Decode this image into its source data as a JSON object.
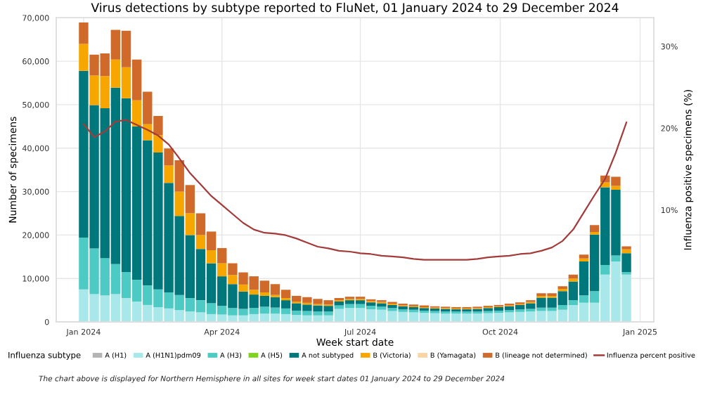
{
  "chart_data": {
    "type": "bar",
    "stacked": true,
    "title": "Virus detections by subtype reported to FluNet, 01 January 2024 to 29 December 2024",
    "xlabel": "Week start date",
    "ylabel": "Number of specimens",
    "y2label": "Influenza positive specimens (%)",
    "legend_title": "Influenza subtype",
    "legend": "bottom",
    "grid": true,
    "annotations": [
      "The chart above is displayed for Northern Hemisphere in all sites for week start dates 01 January 2024 to 29 December 2024"
    ],
    "x": [
      "2024-01-01",
      "2024-01-08",
      "2024-01-15",
      "2024-01-22",
      "2024-01-29",
      "2024-02-05",
      "2024-02-12",
      "2024-02-19",
      "2024-02-26",
      "2024-03-04",
      "2024-03-11",
      "2024-03-18",
      "2024-03-25",
      "2024-04-01",
      "2024-04-08",
      "2024-04-15",
      "2024-04-22",
      "2024-04-29",
      "2024-05-06",
      "2024-05-13",
      "2024-05-20",
      "2024-05-27",
      "2024-06-03",
      "2024-06-10",
      "2024-06-17",
      "2024-06-24",
      "2024-07-01",
      "2024-07-08",
      "2024-07-15",
      "2024-07-22",
      "2024-07-29",
      "2024-08-05",
      "2024-08-12",
      "2024-08-19",
      "2024-08-26",
      "2024-09-02",
      "2024-09-09",
      "2024-09-16",
      "2024-09-23",
      "2024-09-30",
      "2024-10-07",
      "2024-10-14",
      "2024-10-21",
      "2024-10-28",
      "2024-11-04",
      "2024-11-11",
      "2024-11-18",
      "2024-11-25",
      "2024-12-02",
      "2024-12-09",
      "2024-12-16",
      "2024-12-23"
    ],
    "xlim": [
      "2023-12-14",
      "2025-01-10"
    ],
    "xticks": [
      {
        "value": "2024-01-01",
        "label": "Jan 2024"
      },
      {
        "value": "2024-04-01",
        "label": "Apr 2024"
      },
      {
        "value": "2024-07-01",
        "label": "Jul 2024"
      },
      {
        "value": "2024-10-01",
        "label": "Oct 2024"
      },
      {
        "value": "2025-01-01",
        "label": "Jan 2025"
      }
    ],
    "ylim": [
      0,
      70000
    ],
    "yticks": [
      0,
      {
        "value": 10000,
        "label": "10,000"
      },
      {
        "value": 20000,
        "label": "20,000"
      },
      {
        "value": 30000,
        "label": "30,000"
      },
      {
        "value": 40000,
        "label": "40,000"
      },
      {
        "value": 50000,
        "label": "50,000"
      },
      {
        "value": 60000,
        "label": "60,000"
      },
      {
        "value": 70000,
        "label": "70,000"
      }
    ],
    "y2lim": [
      -3.7,
      33.5
    ],
    "y2ticks": [
      {
        "value": 10,
        "label": "10%"
      },
      {
        "value": 20,
        "label": "20%"
      },
      {
        "value": 30,
        "label": "30%"
      }
    ],
    "series": [
      {
        "name": "A (H1)",
        "color": "#b3b3b3",
        "values": [
          0,
          0,
          0,
          0,
          0,
          0,
          0,
          0,
          0,
          0,
          0,
          0,
          0,
          0,
          0,
          0,
          0,
          0,
          0,
          0,
          0,
          0,
          0,
          0,
          0,
          0,
          0,
          0,
          0,
          0,
          0,
          0,
          0,
          0,
          0,
          0,
          0,
          0,
          0,
          0,
          0,
          0,
          0,
          0,
          0,
          0,
          0,
          0,
          0,
          0,
          0,
          0
        ]
      },
      {
        "name": "A (H1N1)pdm09",
        "color": "#a8e8ea",
        "values": [
          7500,
          6400,
          6100,
          6400,
          5500,
          4700,
          3900,
          3400,
          3100,
          2700,
          2400,
          2200,
          1800,
          1700,
          1500,
          1500,
          1800,
          1900,
          1900,
          1800,
          1600,
          1500,
          1500,
          1500,
          3000,
          3200,
          3200,
          2900,
          2800,
          2500,
          2300,
          2200,
          2100,
          2000,
          1900,
          1900,
          1900,
          1900,
          2000,
          2100,
          2200,
          2300,
          2400,
          2500,
          2500,
          2800,
          3900,
          4400,
          4400,
          10900,
          13900,
          10900
        ]
      },
      {
        "name": "A (H3)",
        "color": "#4ecac5",
        "values": [
          11900,
          10500,
          8600,
          6900,
          6000,
          5000,
          4500,
          4100,
          3700,
          3500,
          3100,
          2800,
          2500,
          2000,
          1700,
          1500,
          1400,
          1600,
          1400,
          1300,
          1000,
          1000,
          900,
          900,
          800,
          900,
          900,
          800,
          700,
          700,
          600,
          600,
          500,
          500,
          500,
          500,
          500,
          500,
          500,
          500,
          500,
          600,
          600,
          800,
          800,
          1100,
          1100,
          1700,
          2700,
          2200,
          1400,
          600
        ]
      },
      {
        "name": "A (H5)",
        "color": "#7ed321",
        "values": [
          0,
          0,
          0,
          0,
          0,
          0,
          0,
          0,
          0,
          0,
          0,
          0,
          0,
          0,
          0,
          0,
          0,
          0,
          0,
          0,
          0,
          0,
          0,
          0,
          0,
          0,
          0,
          0,
          0,
          0,
          0,
          0,
          0,
          0,
          0,
          0,
          0,
          0,
          0,
          0,
          0,
          0,
          0,
          0,
          0,
          0,
          0,
          0,
          0,
          0,
          0,
          0
        ]
      },
      {
        "name": "A not subtyped",
        "color": "#00787b",
        "values": [
          38400,
          33000,
          34500,
          40600,
          40000,
          35300,
          33400,
          31500,
          25200,
          18200,
          14500,
          11800,
          9200,
          6800,
          5500,
          4000,
          3100,
          2500,
          2400,
          1900,
          1700,
          1500,
          1400,
          1300,
          900,
          900,
          900,
          800,
          800,
          700,
          700,
          600,
          600,
          600,
          600,
          500,
          500,
          600,
          700,
          800,
          900,
          1000,
          1300,
          2300,
          2300,
          3200,
          4300,
          7800,
          13000,
          17900,
          15100,
          4300
        ]
      },
      {
        "name": "B (Victoria)",
        "color": "#f7a600",
        "values": [
          6200,
          6800,
          7400,
          6500,
          7100,
          6000,
          3700,
          4000,
          4000,
          5600,
          5000,
          3200,
          3000,
          3000,
          2100,
          1600,
          1100,
          800,
          500,
          500,
          400,
          400,
          300,
          300,
          300,
          300,
          300,
          300,
          300,
          300,
          200,
          200,
          200,
          200,
          200,
          200,
          200,
          200,
          200,
          200,
          200,
          200,
          300,
          400,
          400,
          500,
          700,
          700,
          600,
          1100,
          900,
          900
        ]
      },
      {
        "name": "B (Yamagata)",
        "color": "#f8d4a2",
        "values": [
          0,
          0,
          0,
          0,
          0,
          0,
          0,
          0,
          0,
          0,
          0,
          0,
          0,
          0,
          0,
          0,
          0,
          0,
          0,
          0,
          0,
          0,
          0,
          0,
          0,
          0,
          0,
          0,
          0,
          0,
          0,
          0,
          0,
          0,
          0,
          0,
          0,
          0,
          0,
          0,
          0,
          0,
          0,
          0,
          0,
          0,
          0,
          0,
          0,
          0,
          0,
          0
        ]
      },
      {
        "name": "B (lineage not determined)",
        "color": "#cf6a2b",
        "values": [
          4900,
          4800,
          5200,
          6800,
          8400,
          9400,
          7500,
          4400,
          3900,
          7200,
          6500,
          5000,
          4300,
          3500,
          2700,
          2800,
          3100,
          2700,
          2500,
          1900,
          1300,
          1300,
          1200,
          1000,
          500,
          500,
          500,
          400,
          400,
          400,
          400,
          400,
          400,
          300,
          300,
          300,
          300,
          300,
          300,
          300,
          400,
          400,
          400,
          600,
          600,
          600,
          900,
          900,
          1600,
          1600,
          2100,
          700
        ]
      },
      {
        "name": "Influenza percent positive",
        "type": "line",
        "axis": "y2",
        "color": "#a33b3b",
        "values": [
          20.5,
          18.9,
          19.6,
          20.8,
          21.0,
          20.4,
          19.8,
          19.1,
          18.0,
          16.3,
          14.5,
          13.1,
          11.7,
          10.6,
          9.5,
          8.4,
          7.6,
          7.2,
          7.1,
          6.9,
          6.5,
          6.0,
          5.5,
          5.3,
          5.0,
          4.9,
          4.7,
          4.6,
          4.4,
          4.3,
          4.2,
          4.0,
          3.9,
          3.9,
          3.9,
          3.9,
          3.9,
          4.0,
          4.2,
          4.3,
          4.4,
          4.6,
          4.7,
          5.0,
          5.4,
          6.2,
          7.6,
          9.7,
          11.8,
          13.8,
          17.0,
          20.7
        ]
      }
    ]
  }
}
